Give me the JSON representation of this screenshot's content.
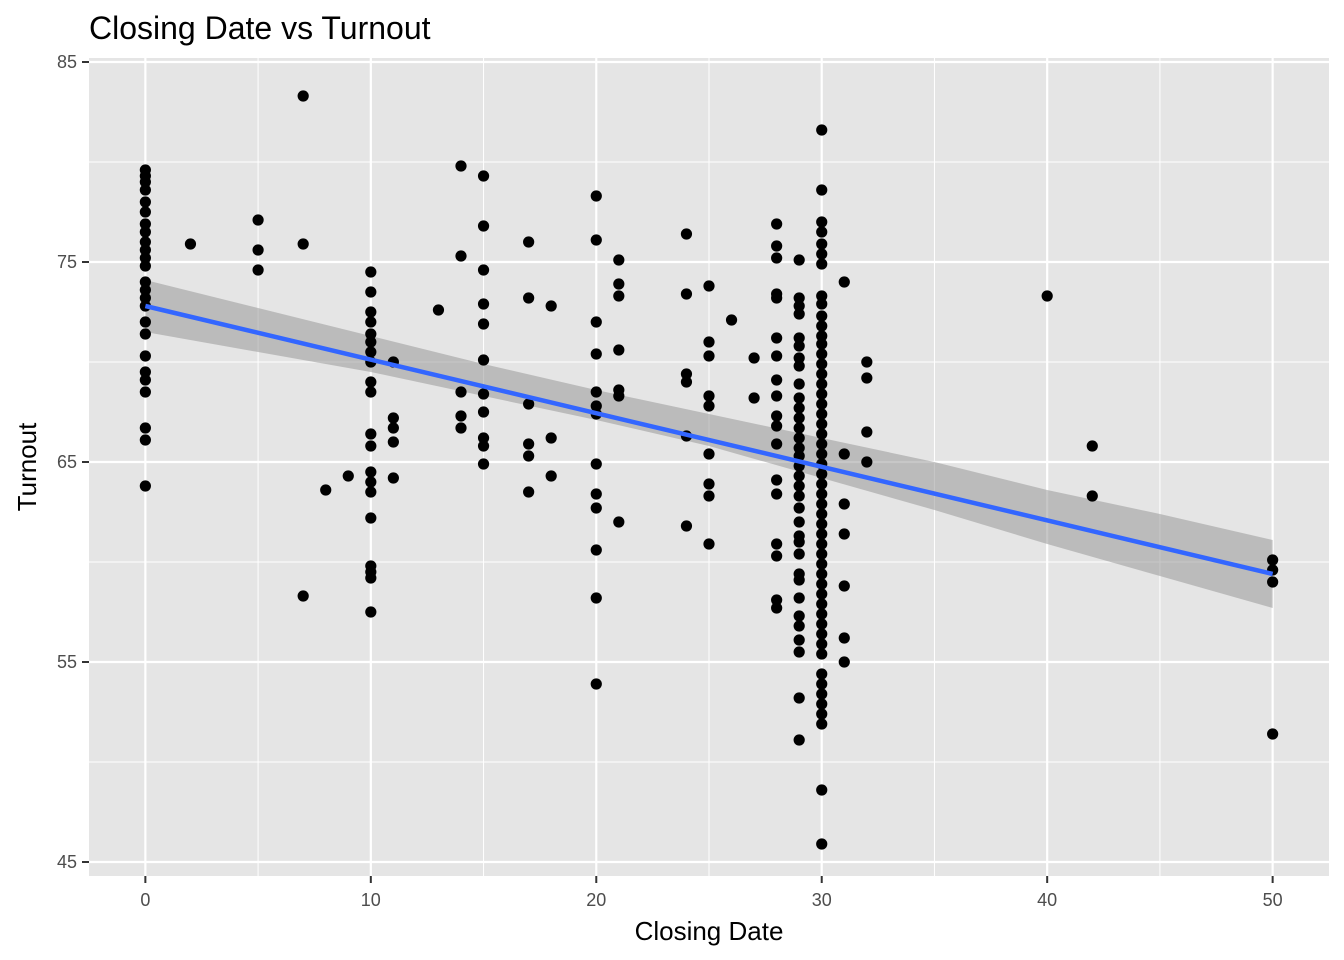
{
  "chart_data": {
    "type": "scatter",
    "title": "Closing Date vs Turnout",
    "xlabel": "Closing Date",
    "ylabel": "Turnout",
    "xlim": [
      -2.5,
      52.5
    ],
    "ylim": [
      44.3,
      85.2
    ],
    "x_ticks": [
      0,
      10,
      20,
      30,
      40,
      50
    ],
    "x_minor_ticks": [
      5,
      15,
      25,
      35,
      45
    ],
    "y_ticks": [
      45,
      55,
      65,
      75,
      85
    ],
    "y_minor_ticks": [
      50,
      60,
      70,
      80
    ],
    "x_tick_labels": [
      "0",
      "10",
      "20",
      "30",
      "40",
      "50"
    ],
    "y_tick_labels": [
      "45",
      "55",
      "65",
      "75",
      "85"
    ],
    "grid": true,
    "panel_color": "#e5e5e5",
    "point_color": "#000000",
    "trend_color": "#3366ff",
    "band_color": "#999999",
    "trend_line": {
      "method": "lm",
      "x": [
        0,
        50
      ],
      "y": [
        72.8,
        59.4
      ]
    },
    "confidence_band": {
      "x": [
        0,
        5,
        10,
        15,
        20,
        25,
        30,
        35,
        40,
        45,
        50
      ],
      "lower": [
        71.5,
        70.5,
        69.5,
        68.3,
        67.1,
        65.8,
        64.2,
        62.6,
        60.9,
        59.3,
        57.7
      ],
      "upper": [
        74.1,
        72.7,
        71.3,
        69.9,
        68.6,
        67.4,
        66.2,
        65.0,
        63.6,
        62.4,
        61.1
      ]
    },
    "points": [
      [
        0,
        79.6
      ],
      [
        0,
        79.3
      ],
      [
        0,
        79.0
      ],
      [
        0,
        78.6
      ],
      [
        0,
        78.0
      ],
      [
        0,
        77.5
      ],
      [
        0,
        76.9
      ],
      [
        0,
        76.5
      ],
      [
        0,
        76.0
      ],
      [
        0,
        75.6
      ],
      [
        0,
        75.2
      ],
      [
        0,
        74.8
      ],
      [
        0,
        74.0
      ],
      [
        0,
        73.6
      ],
      [
        0,
        73.2
      ],
      [
        0,
        72.8
      ],
      [
        0,
        72.0
      ],
      [
        0,
        71.4
      ],
      [
        0,
        70.3
      ],
      [
        0,
        69.5
      ],
      [
        0,
        69.1
      ],
      [
        0,
        68.5
      ],
      [
        0,
        66.7
      ],
      [
        0,
        66.1
      ],
      [
        0,
        63.8
      ],
      [
        2,
        75.9
      ],
      [
        5,
        77.1
      ],
      [
        5,
        75.6
      ],
      [
        5,
        74.6
      ],
      [
        7,
        83.3
      ],
      [
        7,
        75.9
      ],
      [
        7,
        58.3
      ],
      [
        8,
        63.6
      ],
      [
        9,
        64.3
      ],
      [
        10,
        74.5
      ],
      [
        10,
        73.5
      ],
      [
        10,
        72.5
      ],
      [
        10,
        72.0
      ],
      [
        10,
        71.4
      ],
      [
        10,
        71.0
      ],
      [
        10,
        70.5
      ],
      [
        10,
        70.0
      ],
      [
        10,
        69.0
      ],
      [
        10,
        68.5
      ],
      [
        10,
        66.4
      ],
      [
        10,
        65.8
      ],
      [
        10,
        64.5
      ],
      [
        10,
        64.0
      ],
      [
        10,
        63.5
      ],
      [
        10,
        62.2
      ],
      [
        10,
        59.8
      ],
      [
        10,
        59.5
      ],
      [
        10,
        59.2
      ],
      [
        10,
        57.5
      ],
      [
        11,
        70.0
      ],
      [
        11,
        67.2
      ],
      [
        11,
        66.7
      ],
      [
        11,
        66.0
      ],
      [
        11,
        64.2
      ],
      [
        13,
        72.6
      ],
      [
        14,
        79.8
      ],
      [
        14,
        75.3
      ],
      [
        14,
        68.5
      ],
      [
        14,
        67.3
      ],
      [
        14,
        66.7
      ],
      [
        15,
        79.3
      ],
      [
        15,
        76.8
      ],
      [
        15,
        74.6
      ],
      [
        15,
        72.9
      ],
      [
        15,
        71.9
      ],
      [
        15,
        70.1
      ],
      [
        15,
        68.4
      ],
      [
        15,
        67.5
      ],
      [
        15,
        66.2
      ],
      [
        15,
        65.8
      ],
      [
        15,
        64.9
      ],
      [
        17,
        76.0
      ],
      [
        17,
        73.2
      ],
      [
        17,
        67.9
      ],
      [
        17,
        65.9
      ],
      [
        17,
        65.3
      ],
      [
        17,
        63.5
      ],
      [
        18,
        72.8
      ],
      [
        18,
        66.2
      ],
      [
        18,
        64.3
      ],
      [
        20,
        78.3
      ],
      [
        20,
        76.1
      ],
      [
        20,
        72.0
      ],
      [
        20,
        70.4
      ],
      [
        20,
        68.5
      ],
      [
        20,
        67.8
      ],
      [
        20,
        67.4
      ],
      [
        20,
        64.9
      ],
      [
        20,
        63.4
      ],
      [
        20,
        62.7
      ],
      [
        20,
        60.6
      ],
      [
        20,
        58.2
      ],
      [
        20,
        53.9
      ],
      [
        21,
        75.1
      ],
      [
        21,
        73.9
      ],
      [
        21,
        73.3
      ],
      [
        21,
        70.6
      ],
      [
        21,
        68.6
      ],
      [
        21,
        68.3
      ],
      [
        21,
        62.0
      ],
      [
        24,
        76.4
      ],
      [
        24,
        73.4
      ],
      [
        24,
        69.4
      ],
      [
        24,
        69.0
      ],
      [
        24,
        66.3
      ],
      [
        24,
        61.8
      ],
      [
        25,
        73.8
      ],
      [
        25,
        71.0
      ],
      [
        25,
        70.3
      ],
      [
        25,
        68.3
      ],
      [
        25,
        67.8
      ],
      [
        25,
        65.4
      ],
      [
        25,
        63.9
      ],
      [
        25,
        63.3
      ],
      [
        25,
        60.9
      ],
      [
        26,
        72.1
      ],
      [
        27,
        70.2
      ],
      [
        27,
        68.2
      ],
      [
        28,
        76.9
      ],
      [
        28,
        75.8
      ],
      [
        28,
        75.2
      ],
      [
        28,
        73.4
      ],
      [
        28,
        73.2
      ],
      [
        28,
        71.2
      ],
      [
        28,
        70.3
      ],
      [
        28,
        69.1
      ],
      [
        28,
        68.3
      ],
      [
        28,
        67.3
      ],
      [
        28,
        66.8
      ],
      [
        28,
        65.9
      ],
      [
        28,
        64.1
      ],
      [
        28,
        63.4
      ],
      [
        28,
        60.9
      ],
      [
        28,
        60.3
      ],
      [
        28,
        58.1
      ],
      [
        28,
        57.7
      ],
      [
        29,
        75.1
      ],
      [
        29,
        73.2
      ],
      [
        29,
        72.8
      ],
      [
        29,
        72.4
      ],
      [
        29,
        71.2
      ],
      [
        29,
        70.8
      ],
      [
        29,
        70.2
      ],
      [
        29,
        69.8
      ],
      [
        29,
        68.9
      ],
      [
        29,
        68.2
      ],
      [
        29,
        67.7
      ],
      [
        29,
        67.2
      ],
      [
        29,
        66.7
      ],
      [
        29,
        66.2
      ],
      [
        29,
        65.7
      ],
      [
        29,
        65.3
      ],
      [
        29,
        64.8
      ],
      [
        29,
        64.3
      ],
      [
        29,
        63.8
      ],
      [
        29,
        63.3
      ],
      [
        29,
        62.7
      ],
      [
        29,
        62.0
      ],
      [
        29,
        61.3
      ],
      [
        29,
        61.0
      ],
      [
        29,
        60.4
      ],
      [
        29,
        59.4
      ],
      [
        29,
        59.1
      ],
      [
        29,
        58.2
      ],
      [
        29,
        57.3
      ],
      [
        29,
        56.8
      ],
      [
        29,
        56.1
      ],
      [
        29,
        55.5
      ],
      [
        29,
        53.2
      ],
      [
        29,
        51.1
      ],
      [
        30,
        81.6
      ],
      [
        30,
        78.6
      ],
      [
        30,
        77.0
      ],
      [
        30,
        76.5
      ],
      [
        30,
        75.9
      ],
      [
        30,
        75.4
      ],
      [
        30,
        74.9
      ],
      [
        30,
        73.3
      ],
      [
        30,
        72.9
      ],
      [
        30,
        72.3
      ],
      [
        30,
        71.8
      ],
      [
        30,
        71.3
      ],
      [
        30,
        70.9
      ],
      [
        30,
        70.4
      ],
      [
        30,
        69.9
      ],
      [
        30,
        69.4
      ],
      [
        30,
        68.9
      ],
      [
        30,
        68.4
      ],
      [
        30,
        67.9
      ],
      [
        30,
        67.4
      ],
      [
        30,
        66.9
      ],
      [
        30,
        66.4
      ],
      [
        30,
        65.9
      ],
      [
        30,
        65.4
      ],
      [
        30,
        64.9
      ],
      [
        30,
        64.4
      ],
      [
        30,
        63.9
      ],
      [
        30,
        63.4
      ],
      [
        30,
        62.9
      ],
      [
        30,
        62.4
      ],
      [
        30,
        61.9
      ],
      [
        30,
        61.4
      ],
      [
        30,
        60.9
      ],
      [
        30,
        60.4
      ],
      [
        30,
        59.9
      ],
      [
        30,
        59.4
      ],
      [
        30,
        58.9
      ],
      [
        30,
        58.4
      ],
      [
        30,
        57.9
      ],
      [
        30,
        57.4
      ],
      [
        30,
        56.9
      ],
      [
        30,
        56.4
      ],
      [
        30,
        55.9
      ],
      [
        30,
        55.4
      ],
      [
        30,
        54.4
      ],
      [
        30,
        53.9
      ],
      [
        30,
        53.4
      ],
      [
        30,
        52.9
      ],
      [
        30,
        52.4
      ],
      [
        30,
        51.9
      ],
      [
        30,
        48.6
      ],
      [
        30,
        45.9
      ],
      [
        31,
        74.0
      ],
      [
        31,
        65.4
      ],
      [
        31,
        62.9
      ],
      [
        31,
        61.4
      ],
      [
        31,
        58.8
      ],
      [
        31,
        56.2
      ],
      [
        31,
        55.0
      ],
      [
        32,
        70.0
      ],
      [
        32,
        69.2
      ],
      [
        32,
        66.5
      ],
      [
        32,
        65.0
      ],
      [
        40,
        73.3
      ],
      [
        42,
        65.8
      ],
      [
        42,
        63.3
      ],
      [
        50,
        60.1
      ],
      [
        50,
        59.6
      ],
      [
        50,
        59.0
      ],
      [
        50,
        51.4
      ]
    ]
  }
}
